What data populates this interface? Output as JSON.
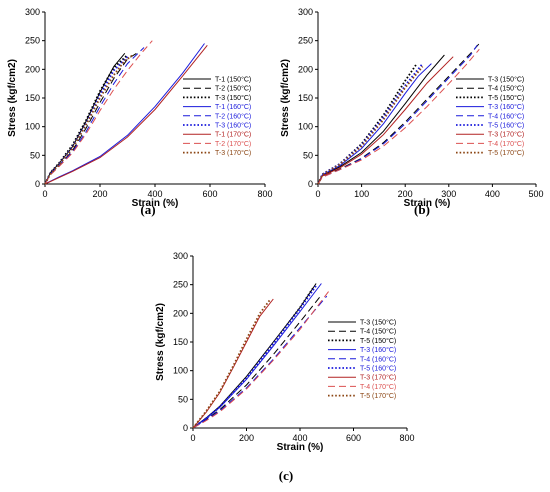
{
  "chart_data": [
    {
      "type": "line",
      "panel_label": "(a)",
      "xlabel": "Strain (%)",
      "ylabel": "Stress (kgf/cm2)",
      "xlim": [
        0,
        800
      ],
      "ylim": [
        0,
        300
      ],
      "xticks": [
        0,
        200,
        400,
        600,
        800
      ],
      "yticks": [
        0,
        50,
        100,
        150,
        200,
        250,
        300
      ],
      "grid": false,
      "legend_position": "right",
      "series": [
        {
          "name": "T-1 (150°C)",
          "color": "#000000",
          "dash": "solid",
          "x": [
            0,
            20,
            50,
            100,
            150,
            200,
            250,
            290
          ],
          "y": [
            0,
            20,
            35,
            65,
            110,
            160,
            205,
            228
          ]
        },
        {
          "name": "T-2 (150°C)",
          "color": "#000000",
          "dash": "dashed",
          "x": [
            0,
            20,
            50,
            100,
            150,
            200,
            250,
            300,
            340
          ],
          "y": [
            0,
            18,
            32,
            58,
            98,
            142,
            184,
            218,
            230
          ]
        },
        {
          "name": "T-3 (150°C)",
          "color": "#000000",
          "dash": "dotted",
          "x": [
            0,
            20,
            50,
            100,
            150,
            200,
            250,
            300
          ],
          "y": [
            0,
            20,
            36,
            68,
            112,
            162,
            203,
            225
          ]
        },
        {
          "name": "T-1 (160°C)",
          "color": "#1a1adc",
          "dash": "solid",
          "x": [
            0,
            50,
            100,
            200,
            300,
            400,
            500,
            580
          ],
          "y": [
            0,
            12,
            23,
            48,
            85,
            135,
            193,
            245
          ]
        },
        {
          "name": "T-2 (160°C)",
          "color": "#1a1adc",
          "dash": "dashed",
          "x": [
            0,
            20,
            50,
            100,
            150,
            200,
            250,
            300,
            360
          ],
          "y": [
            0,
            18,
            32,
            56,
            92,
            135,
            175,
            210,
            238
          ]
        },
        {
          "name": "T-3 (160°C)",
          "color": "#1a1adc",
          "dash": "dotted",
          "x": [
            0,
            20,
            50,
            100,
            150,
            200,
            250,
            300
          ],
          "y": [
            0,
            19,
            34,
            64,
            106,
            155,
            198,
            222
          ]
        },
        {
          "name": "T-1 (170°C)",
          "color": "#b22222",
          "dash": "solid",
          "x": [
            0,
            50,
            100,
            200,
            300,
            400,
            500,
            590
          ],
          "y": [
            0,
            11,
            22,
            46,
            82,
            130,
            188,
            242
          ]
        },
        {
          "name": "T-2 (170°C)",
          "color": "#dc5050",
          "dash": "dashed",
          "x": [
            0,
            20,
            50,
            100,
            150,
            200,
            250,
            300,
            350,
            390
          ],
          "y": [
            0,
            16,
            30,
            54,
            88,
            128,
            165,
            198,
            228,
            250
          ]
        },
        {
          "name": "T-3 (170°C)",
          "color": "#8b4513",
          "dash": "dotted",
          "x": [
            0,
            20,
            50,
            100,
            150,
            200,
            250,
            290,
            320
          ],
          "y": [
            0,
            18,
            33,
            62,
            104,
            150,
            190,
            215,
            225
          ]
        }
      ]
    },
    {
      "type": "line",
      "panel_label": "(b)",
      "xlabel": "Strain (%)",
      "ylabel": "Stress (kgf/cm2)",
      "xlim": [
        0,
        500
      ],
      "ylim": [
        0,
        300
      ],
      "xticks": [
        0,
        100,
        200,
        300,
        400,
        500
      ],
      "yticks": [
        0,
        50,
        100,
        150,
        200,
        250,
        300
      ],
      "grid": false,
      "legend_position": "right",
      "series": [
        {
          "name": "T-3 (150°C)",
          "color": "#000000",
          "dash": "solid",
          "x": [
            0,
            10,
            50,
            100,
            150,
            200,
            250,
            290
          ],
          "y": [
            0,
            15,
            30,
            55,
            92,
            140,
            190,
            225
          ]
        },
        {
          "name": "T-4 (150°C)",
          "color": "#000000",
          "dash": "dashed",
          "x": [
            0,
            10,
            50,
            100,
            150,
            200,
            250,
            300,
            350,
            370
          ],
          "y": [
            0,
            13,
            26,
            45,
            72,
            108,
            148,
            188,
            228,
            245
          ]
        },
        {
          "name": "T-5 (150°C)",
          "color": "#000000",
          "dash": "dotted",
          "x": [
            0,
            10,
            50,
            100,
            150,
            200,
            225
          ],
          "y": [
            0,
            17,
            35,
            70,
            120,
            180,
            208
          ]
        },
        {
          "name": "T-3 (160°C)",
          "color": "#1a1adc",
          "dash": "solid",
          "x": [
            0,
            10,
            50,
            100,
            150,
            200,
            230,
            260
          ],
          "y": [
            0,
            16,
            32,
            62,
            105,
            158,
            188,
            210
          ]
        },
        {
          "name": "T-4 (160°C)",
          "color": "#1a1adc",
          "dash": "dashed",
          "x": [
            0,
            10,
            50,
            100,
            150,
            200,
            250,
            300,
            350,
            365
          ],
          "y": [
            0,
            12,
            25,
            44,
            70,
            105,
            145,
            185,
            225,
            242
          ]
        },
        {
          "name": "T-5 (160°C)",
          "color": "#1a1adc",
          "dash": "dotted",
          "x": [
            0,
            10,
            50,
            100,
            150,
            200,
            240
          ],
          "y": [
            0,
            17,
            35,
            68,
            116,
            172,
            210
          ]
        },
        {
          "name": "T-3 (170°C)",
          "color": "#b22222",
          "dash": "solid",
          "x": [
            0,
            10,
            50,
            100,
            150,
            200,
            250,
            310
          ],
          "y": [
            0,
            14,
            28,
            52,
            86,
            130,
            176,
            222
          ]
        },
        {
          "name": "T-4 (170°C)",
          "color": "#dc5050",
          "dash": "dashed",
          "x": [
            0,
            10,
            50,
            100,
            150,
            200,
            250,
            300,
            340,
            370
          ],
          "y": [
            0,
            12,
            25,
            42,
            66,
            98,
            135,
            175,
            208,
            235
          ]
        },
        {
          "name": "T-5 (170°C)",
          "color": "#8b4513",
          "dash": "dotted",
          "x": [
            0,
            10,
            50,
            100,
            150,
            200,
            240
          ],
          "y": [
            0,
            16,
            34,
            66,
            112,
            168,
            205
          ]
        }
      ]
    },
    {
      "type": "line",
      "panel_label": "(c)",
      "xlabel": "Strain (%)",
      "ylabel": "Stress (kgf/cm2)",
      "xlim": [
        0,
        800
      ],
      "ylim": [
        0,
        300
      ],
      "xticks": [
        0,
        200,
        400,
        600,
        800
      ],
      "yticks": [
        0,
        50,
        100,
        150,
        200,
        250,
        300
      ],
      "grid": false,
      "legend_position": "right",
      "series": [
        {
          "name": "T-3 (150°C)",
          "color": "#000000",
          "dash": "solid",
          "x": [
            0,
            50,
            100,
            200,
            300,
            400,
            460
          ],
          "y": [
            0,
            18,
            38,
            90,
            150,
            210,
            252
          ]
        },
        {
          "name": "T-4 (150°C)",
          "color": "#000000",
          "dash": "dashed",
          "x": [
            0,
            50,
            100,
            200,
            300,
            400,
            480
          ],
          "y": [
            0,
            15,
            32,
            75,
            128,
            185,
            232
          ]
        },
        {
          "name": "T-5 (150°C)",
          "color": "#000000",
          "dash": "dotted",
          "x": [
            0,
            50,
            100,
            200,
            300,
            400,
            450
          ],
          "y": [
            0,
            17,
            37,
            88,
            148,
            210,
            245
          ]
        },
        {
          "name": "T-3 (160°C)",
          "color": "#1a1adc",
          "dash": "solid",
          "x": [
            0,
            50,
            100,
            200,
            300,
            400,
            480
          ],
          "y": [
            0,
            17,
            36,
            85,
            143,
            203,
            252
          ]
        },
        {
          "name": "T-4 (160°C)",
          "color": "#1a1adc",
          "dash": "dashed",
          "x": [
            0,
            50,
            100,
            200,
            300,
            400,
            500
          ],
          "y": [
            0,
            14,
            30,
            70,
            120,
            175,
            230
          ]
        },
        {
          "name": "T-5 (160°C)",
          "color": "#1a1adc",
          "dash": "dotted",
          "x": [
            0,
            50,
            100,
            200,
            300,
            400,
            460
          ],
          "y": [
            0,
            17,
            37,
            87,
            147,
            208,
            248
          ]
        },
        {
          "name": "T-3 (170°C)",
          "color": "#b22222",
          "dash": "solid",
          "x": [
            0,
            50,
            100,
            150,
            200,
            250,
            300
          ],
          "y": [
            0,
            28,
            62,
            105,
            150,
            195,
            225
          ]
        },
        {
          "name": "T-4 (170°C)",
          "color": "#dc5050",
          "dash": "dashed",
          "x": [
            0,
            50,
            100,
            200,
            300,
            400,
            510
          ],
          "y": [
            0,
            13,
            28,
            68,
            118,
            172,
            240
          ]
        },
        {
          "name": "T-5 (170°C)",
          "color": "#8b4513",
          "dash": "dotted",
          "x": [
            0,
            50,
            100,
            150,
            200,
            250,
            290
          ],
          "y": [
            0,
            30,
            64,
            108,
            155,
            200,
            225
          ]
        }
      ]
    }
  ]
}
